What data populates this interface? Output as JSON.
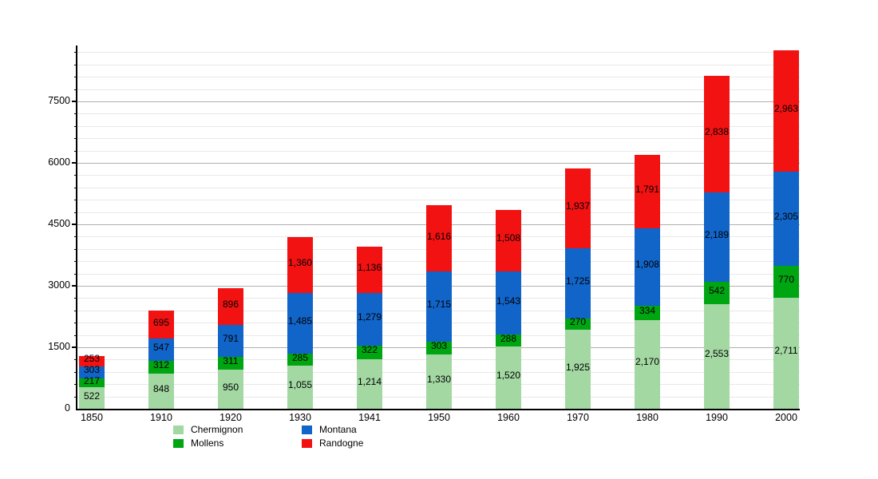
{
  "chart_data": {
    "type": "bar",
    "stacked": true,
    "title": "",
    "xlabel": "",
    "ylabel": "",
    "categories": [
      "1850",
      "1910",
      "1920",
      "1930",
      "1941",
      "1950",
      "1960",
      "1970",
      "1980",
      "1990",
      "2000"
    ],
    "series": [
      {
        "name": "Chermignon",
        "color": "#a3d8a3",
        "values": [
          522,
          848,
          950,
          1055,
          1214,
          1330,
          1520,
          1925,
          2170,
          2553,
          2711
        ]
      },
      {
        "name": "Mollens",
        "color": "#00a512",
        "values": [
          217,
          312,
          311,
          285,
          322,
          303,
          288,
          270,
          334,
          542,
          770
        ]
      },
      {
        "name": "Montana",
        "color": "#1164c8",
        "values": [
          303,
          547,
          791,
          1485,
          1279,
          1715,
          1543,
          1725,
          1908,
          2189,
          2305
        ]
      },
      {
        "name": "Randogne",
        "color": "#f21212",
        "values": [
          253,
          695,
          896,
          1360,
          1136,
          1616,
          1508,
          1937,
          1791,
          2838,
          2963
        ]
      }
    ],
    "ylim": [
      0,
      8860
    ],
    "yticks": [
      "0",
      "1500",
      "3000",
      "4500",
      "6000",
      "7500"
    ],
    "major_step": 1500,
    "minor_step": 300,
    "grid": true,
    "value_labels": true,
    "legend_position": "bottom",
    "legend_columns": [
      [
        "Chermignon",
        "Mollens"
      ],
      [
        "Montana",
        "Randogne"
      ]
    ]
  },
  "colors": {
    "background": "#ffffff",
    "axis": "#000000",
    "major_gridline": "#b0b0b0",
    "minor_gridline": "#e8e8e8",
    "label_text": "#000000"
  }
}
